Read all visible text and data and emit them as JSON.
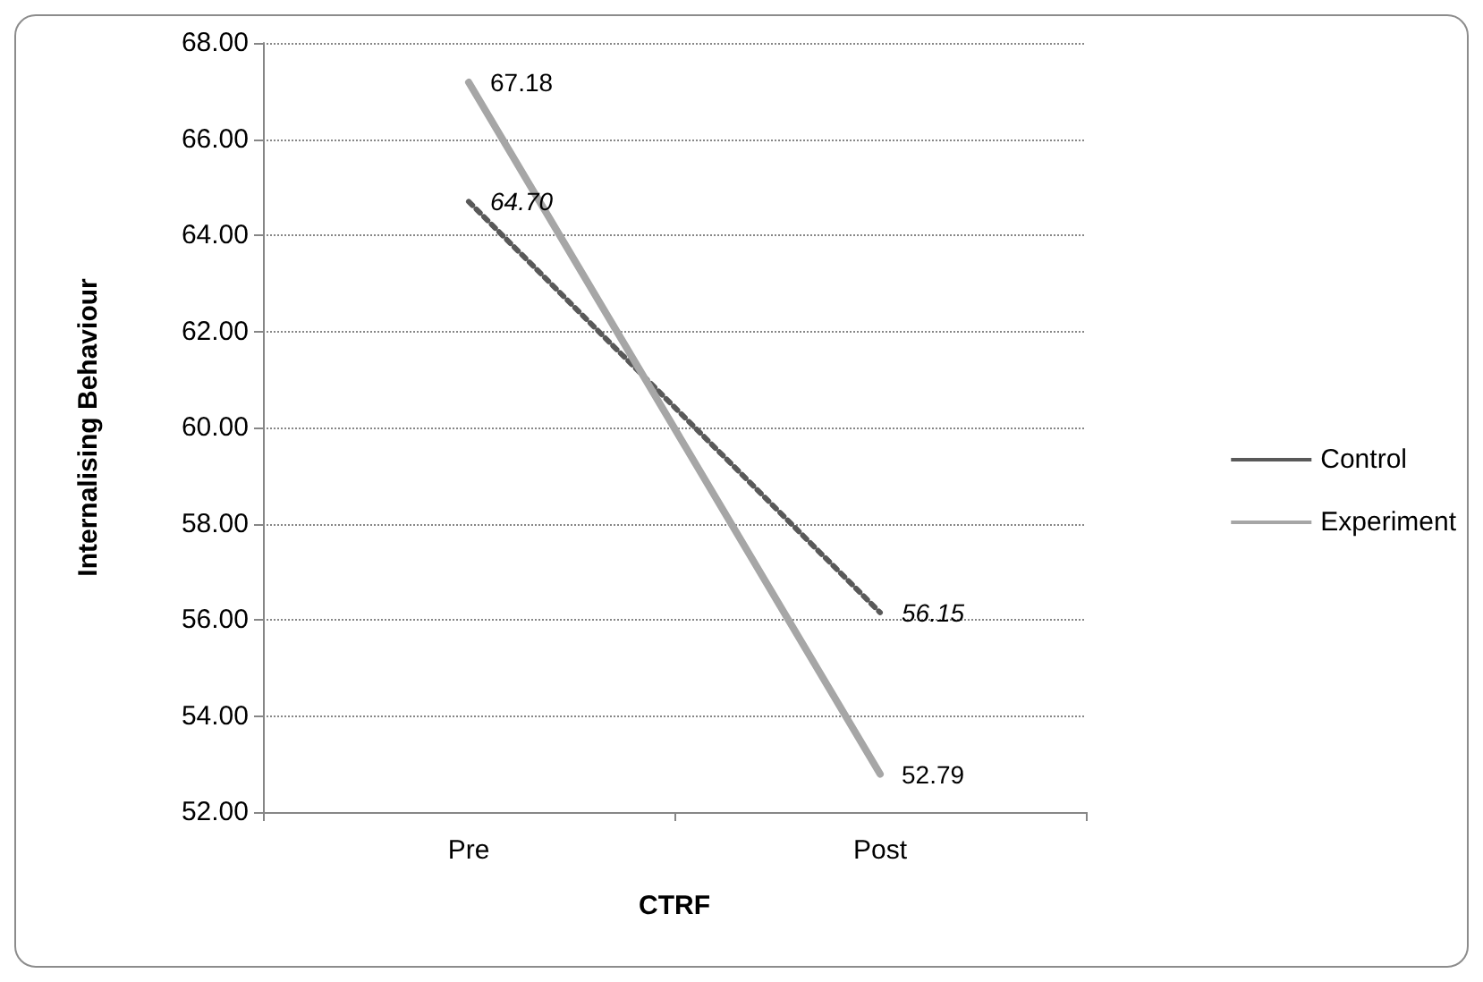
{
  "chart_data": {
    "type": "line",
    "xlabel": "CTRF",
    "ylabel": "Internalising Behaviour",
    "categories": [
      "Pre",
      "Post"
    ],
    "series": [
      {
        "name": "Control",
        "color": "#595959",
        "line_style": "dotted",
        "values": [
          64.7,
          56.15
        ],
        "value_labels": [
          "64.70",
          "56.15"
        ]
      },
      {
        "name": "Experiment",
        "color": "#a6a6a6",
        "line_style": "solid",
        "values": [
          67.18,
          52.79
        ],
        "value_labels": [
          "67.18",
          "52.79"
        ]
      }
    ],
    "ylim": [
      52,
      68
    ],
    "yticks": [
      {
        "value": 52,
        "label": "52.00"
      },
      {
        "value": 54,
        "label": "54.00"
      },
      {
        "value": 56,
        "label": "56.00"
      },
      {
        "value": 58,
        "label": "58.00"
      },
      {
        "value": 60,
        "label": "60.00"
      },
      {
        "value": 62,
        "label": "62.00"
      },
      {
        "value": 64,
        "label": "64.00"
      },
      {
        "value": 66,
        "label": "66.00"
      },
      {
        "value": 68,
        "label": "68.00"
      }
    ],
    "grid": "y",
    "legend": "right",
    "marker": "none"
  }
}
